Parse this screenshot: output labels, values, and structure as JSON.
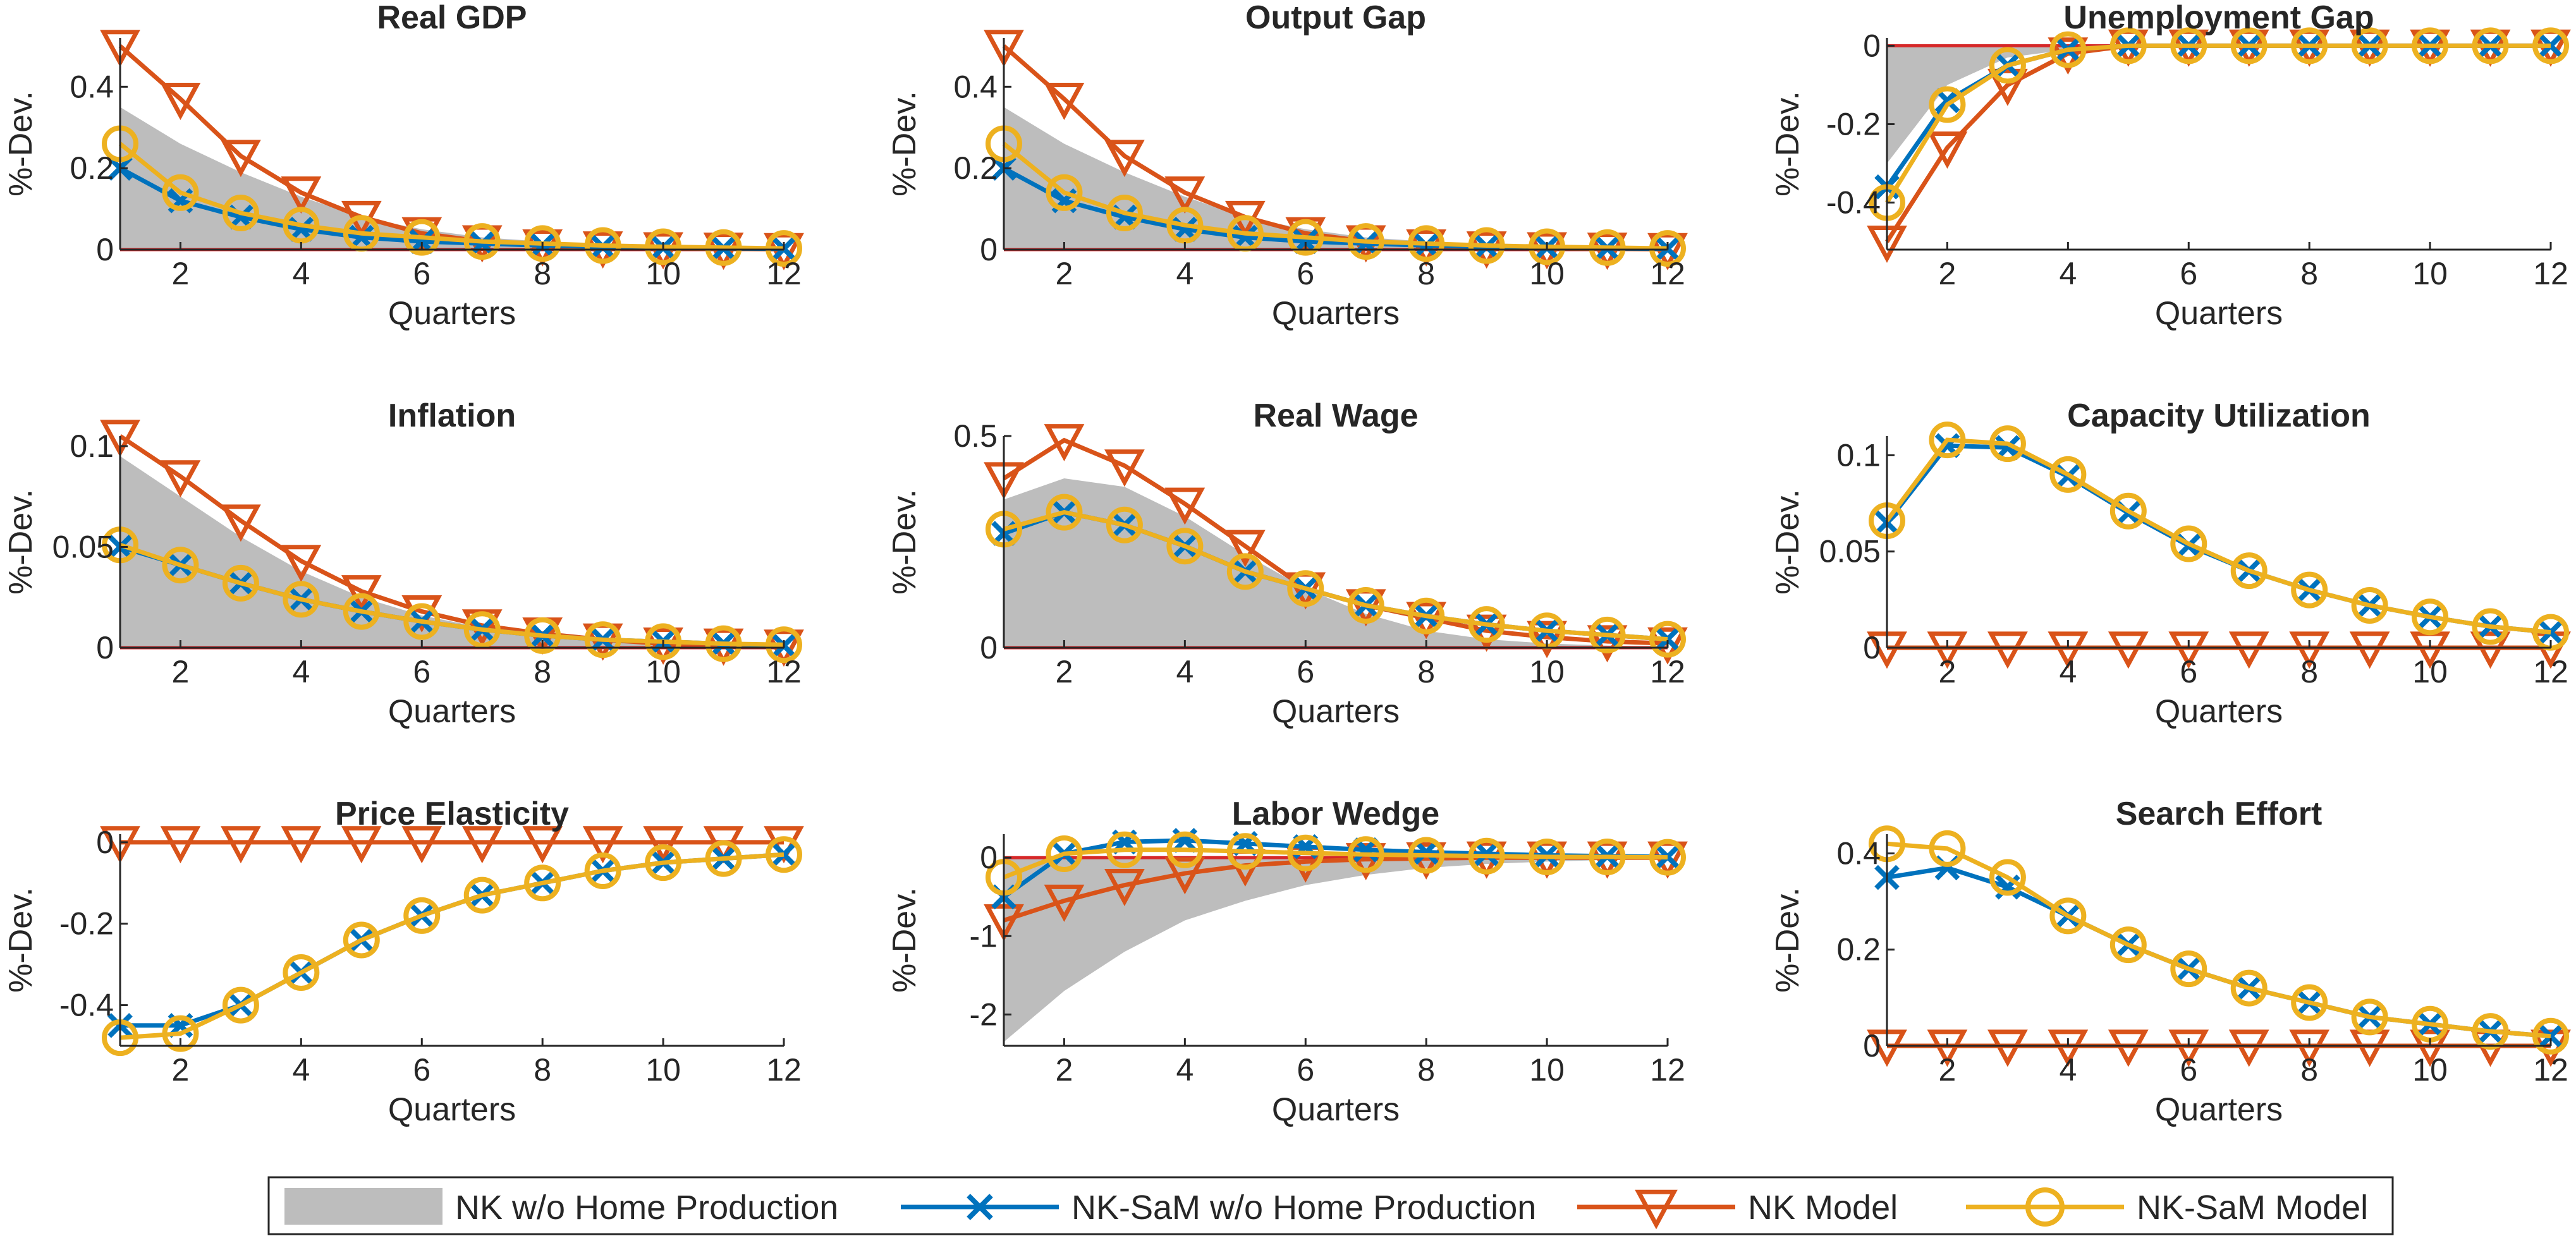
{
  "colors": {
    "shade": "#bdbdbd",
    "nk_sam_no_home": "#0072bd",
    "nk_model": "#d95319",
    "nk_sam_model": "#edb120",
    "zero_line": "#d62728",
    "text": "#262626"
  },
  "legend": {
    "placement": "bottom-center",
    "items": [
      {
        "label": "NK w/o Home Production",
        "style": "area"
      },
      {
        "label": "NK-SaM w/o Home Production",
        "style": "x"
      },
      {
        "label": "NK Model",
        "style": "triangle"
      },
      {
        "label": "NK-SaM Model",
        "style": "circle"
      }
    ]
  },
  "chart_data": [
    {
      "type": "line",
      "title": "Real GDP",
      "xlabel": "Quarters",
      "ylabel": "%-Dev.",
      "xlim": [
        1,
        12
      ],
      "ylim": [
        0,
        0.52
      ],
      "yticks": [
        {
          "v": 0,
          "label": "0"
        },
        {
          "v": 0.2,
          "label": "0.2"
        },
        {
          "v": 0.4,
          "label": "0.4"
        }
      ],
      "xticks": [
        2,
        4,
        6,
        8,
        10,
        12
      ],
      "x": [
        1,
        2,
        3,
        4,
        5,
        6,
        7,
        8,
        9,
        10,
        11,
        12
      ],
      "series": [
        {
          "name": "NK w/o Home Production",
          "values": [
            0.35,
            0.26,
            0.19,
            0.13,
            0.08,
            0.05,
            0.03,
            0.02,
            0.01,
            0.01,
            0.005,
            0.003
          ]
        },
        {
          "name": "NK-SaM w/o Home Production",
          "values": [
            0.2,
            0.12,
            0.08,
            0.05,
            0.03,
            0.02,
            0.015,
            0.01,
            0.007,
            0.005,
            0.003,
            0.002
          ]
        },
        {
          "name": "NK Model",
          "values": [
            0.5,
            0.37,
            0.23,
            0.14,
            0.08,
            0.04,
            0.02,
            0.01,
            0.005,
            0.003,
            0.002,
            0.001
          ]
        },
        {
          "name": "NK-SaM Model",
          "values": [
            0.26,
            0.14,
            0.09,
            0.06,
            0.04,
            0.03,
            0.02,
            0.015,
            0.01,
            0.007,
            0.005,
            0.003
          ]
        }
      ]
    },
    {
      "type": "line",
      "title": "Output Gap",
      "xlabel": "Quarters",
      "ylabel": "%-Dev.",
      "xlim": [
        1,
        12
      ],
      "ylim": [
        0,
        0.52
      ],
      "yticks": [
        {
          "v": 0,
          "label": "0"
        },
        {
          "v": 0.2,
          "label": "0.2"
        },
        {
          "v": 0.4,
          "label": "0.4"
        }
      ],
      "xticks": [
        2,
        4,
        6,
        8,
        10,
        12
      ],
      "x": [
        1,
        2,
        3,
        4,
        5,
        6,
        7,
        8,
        9,
        10,
        11,
        12
      ],
      "series": [
        {
          "name": "NK w/o Home Production",
          "values": [
            0.35,
            0.26,
            0.19,
            0.13,
            0.08,
            0.05,
            0.03,
            0.02,
            0.01,
            0.01,
            0.005,
            0.003
          ]
        },
        {
          "name": "NK-SaM w/o Home Production",
          "values": [
            0.2,
            0.12,
            0.08,
            0.05,
            0.03,
            0.02,
            0.015,
            0.01,
            0.007,
            0.005,
            0.003,
            0.002
          ]
        },
        {
          "name": "NK Model",
          "values": [
            0.5,
            0.37,
            0.23,
            0.14,
            0.08,
            0.04,
            0.02,
            0.01,
            0.005,
            0.003,
            0.002,
            0.001
          ]
        },
        {
          "name": "NK-SaM Model",
          "values": [
            0.26,
            0.14,
            0.09,
            0.06,
            0.04,
            0.03,
            0.02,
            0.015,
            0.01,
            0.007,
            0.005,
            0.003
          ]
        }
      ]
    },
    {
      "type": "line",
      "title": "Unemployment Gap",
      "xlabel": "Quarters",
      "ylabel": "%-Dev.",
      "xlim": [
        1,
        12
      ],
      "ylim": [
        -0.52,
        0.02
      ],
      "yticks": [
        {
          "v": -0.4,
          "label": "-0.4"
        },
        {
          "v": -0.2,
          "label": "-0.2"
        },
        {
          "v": 0,
          "label": "0"
        }
      ],
      "xticks": [
        2,
        4,
        6,
        8,
        10,
        12
      ],
      "x": [
        1,
        2,
        3,
        4,
        5,
        6,
        7,
        8,
        9,
        10,
        11,
        12
      ],
      "series": [
        {
          "name": "NK w/o Home Production",
          "values": [
            -0.3,
            -0.1,
            -0.03,
            -0.01,
            0,
            0,
            0,
            0,
            0,
            0,
            0,
            0
          ]
        },
        {
          "name": "NK-SaM w/o Home Production",
          "values": [
            -0.36,
            -0.14,
            -0.05,
            -0.01,
            0,
            0,
            0,
            0,
            0,
            0,
            0,
            0
          ]
        },
        {
          "name": "NK Model",
          "values": [
            -0.5,
            -0.26,
            -0.1,
            -0.02,
            0,
            0,
            0,
            0,
            0,
            0,
            0,
            0
          ]
        },
        {
          "name": "NK-SaM Model",
          "values": [
            -0.4,
            -0.15,
            -0.05,
            -0.01,
            0,
            0,
            0,
            0,
            0,
            0,
            0,
            0
          ]
        }
      ]
    },
    {
      "type": "line",
      "title": "Inflation",
      "xlabel": "Quarters",
      "ylabel": "%-Dev.",
      "xlim": [
        1,
        12
      ],
      "ylim": [
        0,
        0.105
      ],
      "yticks": [
        {
          "v": 0,
          "label": "0"
        },
        {
          "v": 0.05,
          "label": "0.05"
        },
        {
          "v": 0.1,
          "label": "0.1"
        }
      ],
      "xticks": [
        2,
        4,
        6,
        8,
        10,
        12
      ],
      "x": [
        1,
        2,
        3,
        4,
        5,
        6,
        7,
        8,
        9,
        10,
        11,
        12
      ],
      "series": [
        {
          "name": "NK w/o Home Production",
          "values": [
            0.095,
            0.075,
            0.055,
            0.038,
            0.025,
            0.016,
            0.01,
            0.006,
            0.004,
            0.002,
            0.0015,
            0.001
          ]
        },
        {
          "name": "NK-SaM w/o Home Production",
          "values": [
            0.05,
            0.041,
            0.032,
            0.024,
            0.018,
            0.013,
            0.009,
            0.006,
            0.004,
            0.003,
            0.002,
            0.001
          ]
        },
        {
          "name": "NK Model",
          "values": [
            0.105,
            0.085,
            0.063,
            0.043,
            0.028,
            0.018,
            0.011,
            0.007,
            0.004,
            0.002,
            0.0015,
            0.001
          ]
        },
        {
          "name": "NK-SaM Model",
          "values": [
            0.051,
            0.041,
            0.032,
            0.024,
            0.018,
            0.013,
            0.009,
            0.006,
            0.004,
            0.003,
            0.002,
            0.0015
          ]
        }
      ]
    },
    {
      "type": "line",
      "title": "Real Wage",
      "xlabel": "Quarters",
      "ylabel": "%-Dev.",
      "xlim": [
        1,
        12
      ],
      "ylim": [
        0,
        0.5
      ],
      "yticks": [
        {
          "v": 0,
          "label": "0"
        },
        {
          "v": 0.5,
          "label": "0.5"
        }
      ],
      "xticks": [
        2,
        4,
        6,
        8,
        10,
        12
      ],
      "x": [
        1,
        2,
        3,
        4,
        5,
        6,
        7,
        8,
        9,
        10,
        11,
        12
      ],
      "series": [
        {
          "name": "NK w/o Home Production",
          "values": [
            0.35,
            0.4,
            0.38,
            0.31,
            0.22,
            0.14,
            0.08,
            0.04,
            0.02,
            0.01,
            0.005,
            0.003
          ]
        },
        {
          "name": "NK-SaM w/o Home Production",
          "values": [
            0.27,
            0.32,
            0.29,
            0.24,
            0.18,
            0.14,
            0.1,
            0.075,
            0.055,
            0.04,
            0.03,
            0.02
          ]
        },
        {
          "name": "NK Model",
          "values": [
            0.4,
            0.49,
            0.43,
            0.34,
            0.24,
            0.14,
            0.1,
            0.07,
            0.04,
            0.025,
            0.015,
            0.01
          ]
        },
        {
          "name": "NK-SaM Model",
          "values": [
            0.28,
            0.32,
            0.29,
            0.24,
            0.18,
            0.14,
            0.1,
            0.075,
            0.055,
            0.04,
            0.03,
            0.02
          ]
        }
      ]
    },
    {
      "type": "line",
      "title": "Capacity Utilization",
      "xlabel": "Quarters",
      "ylabel": "%-Dev.",
      "xlim": [
        1,
        12
      ],
      "ylim": [
        0,
        0.11
      ],
      "yticks": [
        {
          "v": 0,
          "label": "0"
        },
        {
          "v": 0.05,
          "label": "0.05"
        },
        {
          "v": 0.1,
          "label": "0.1"
        }
      ],
      "xticks": [
        2,
        4,
        6,
        8,
        10,
        12
      ],
      "x": [
        1,
        2,
        3,
        4,
        5,
        6,
        7,
        8,
        9,
        10,
        11,
        12
      ],
      "series": [
        {
          "name": "NK w/o Home Production",
          "values": [
            0,
            0,
            0,
            0,
            0,
            0,
            0,
            0,
            0,
            0,
            0,
            0
          ]
        },
        {
          "name": "NK-SaM w/o Home Production",
          "values": [
            0.065,
            0.105,
            0.104,
            0.089,
            0.07,
            0.053,
            0.04,
            0.03,
            0.022,
            0.016,
            0.011,
            0.008
          ]
        },
        {
          "name": "NK Model",
          "values": [
            0,
            0,
            0,
            0,
            0,
            0,
            0,
            0,
            0,
            0,
            0,
            0
          ]
        },
        {
          "name": "NK-SaM Model",
          "values": [
            0.066,
            0.108,
            0.106,
            0.09,
            0.071,
            0.054,
            0.04,
            0.03,
            0.022,
            0.016,
            0.011,
            0.008
          ]
        }
      ]
    },
    {
      "type": "line",
      "title": "Price Elasticity",
      "xlabel": "Quarters",
      "ylabel": "%-Dev.",
      "xlim": [
        1,
        12
      ],
      "ylim": [
        -0.5,
        0.02
      ],
      "yticks": [
        {
          "v": -0.4,
          "label": "-0.4"
        },
        {
          "v": -0.2,
          "label": "-0.2"
        },
        {
          "v": 0,
          "label": "0"
        }
      ],
      "xticks": [
        2,
        4,
        6,
        8,
        10,
        12
      ],
      "x": [
        1,
        2,
        3,
        4,
        5,
        6,
        7,
        8,
        9,
        10,
        11,
        12
      ],
      "series": [
        {
          "name": "NK w/o Home Production",
          "values": [
            0,
            0,
            0,
            0,
            0,
            0,
            0,
            0,
            0,
            0,
            0,
            0
          ]
        },
        {
          "name": "NK-SaM w/o Home Production",
          "values": [
            -0.45,
            -0.45,
            -0.4,
            -0.32,
            -0.24,
            -0.18,
            -0.13,
            -0.1,
            -0.07,
            -0.05,
            -0.04,
            -0.03
          ]
        },
        {
          "name": "NK Model",
          "values": [
            0,
            0,
            0,
            0,
            0,
            0,
            0,
            0,
            0,
            0,
            0,
            0
          ]
        },
        {
          "name": "NK-SaM Model",
          "values": [
            -0.48,
            -0.47,
            -0.4,
            -0.32,
            -0.24,
            -0.18,
            -0.13,
            -0.1,
            -0.07,
            -0.05,
            -0.04,
            -0.03
          ]
        }
      ]
    },
    {
      "type": "line",
      "title": "Labor Wedge",
      "xlabel": "Quarters",
      "ylabel": "%-Dev.",
      "xlim": [
        1,
        12
      ],
      "ylim": [
        -2.4,
        0.3
      ],
      "yticks": [
        {
          "v": -2,
          "label": "-2"
        },
        {
          "v": -1,
          "label": "-1"
        },
        {
          "v": 0,
          "label": "0"
        }
      ],
      "xticks": [
        2,
        4,
        6,
        8,
        10,
        12
      ],
      "x": [
        1,
        2,
        3,
        4,
        5,
        6,
        7,
        8,
        9,
        10,
        11,
        12
      ],
      "series": [
        {
          "name": "NK w/o Home Production",
          "values": [
            -2.35,
            -1.7,
            -1.2,
            -0.8,
            -0.55,
            -0.35,
            -0.22,
            -0.13,
            -0.08,
            -0.05,
            -0.03,
            -0.02
          ]
        },
        {
          "name": "NK-SaM w/o Home Production",
          "values": [
            -0.5,
            0.05,
            0.2,
            0.22,
            0.18,
            0.14,
            0.1,
            0.07,
            0.05,
            0.03,
            0.02,
            0.01
          ]
        },
        {
          "name": "NK Model",
          "values": [
            -0.8,
            -0.55,
            -0.35,
            -0.2,
            -0.1,
            -0.05,
            -0.02,
            -0.01,
            0,
            0,
            0,
            0
          ]
        },
        {
          "name": "NK-SaM Model",
          "values": [
            -0.25,
            0.05,
            0.1,
            0.1,
            0.08,
            0.06,
            0.04,
            0.03,
            0.02,
            0.01,
            0.01,
            0.005
          ]
        }
      ]
    },
    {
      "type": "line",
      "title": "Search Effort",
      "xlabel": "Quarters",
      "ylabel": "%-Dev.",
      "xlim": [
        1,
        12
      ],
      "ylim": [
        0,
        0.44
      ],
      "yticks": [
        {
          "v": 0,
          "label": "0"
        },
        {
          "v": 0.2,
          "label": "0.2"
        },
        {
          "v": 0.4,
          "label": "0.4"
        }
      ],
      "xticks": [
        2,
        4,
        6,
        8,
        10,
        12
      ],
      "x": [
        1,
        2,
        3,
        4,
        5,
        6,
        7,
        8,
        9,
        10,
        11,
        12
      ],
      "series": [
        {
          "name": "NK w/o Home Production",
          "values": [
            0,
            0,
            0,
            0,
            0,
            0,
            0,
            0,
            0,
            0,
            0,
            0
          ]
        },
        {
          "name": "NK-SaM w/o Home Production",
          "values": [
            0.35,
            0.37,
            0.33,
            0.27,
            0.21,
            0.16,
            0.12,
            0.09,
            0.06,
            0.045,
            0.03,
            0.02
          ]
        },
        {
          "name": "NK Model",
          "values": [
            0,
            0,
            0,
            0,
            0,
            0,
            0,
            0,
            0,
            0,
            0,
            0
          ]
        },
        {
          "name": "NK-SaM Model",
          "values": [
            0.42,
            0.41,
            0.35,
            0.27,
            0.21,
            0.16,
            0.12,
            0.09,
            0.06,
            0.045,
            0.03,
            0.02
          ]
        }
      ]
    }
  ]
}
